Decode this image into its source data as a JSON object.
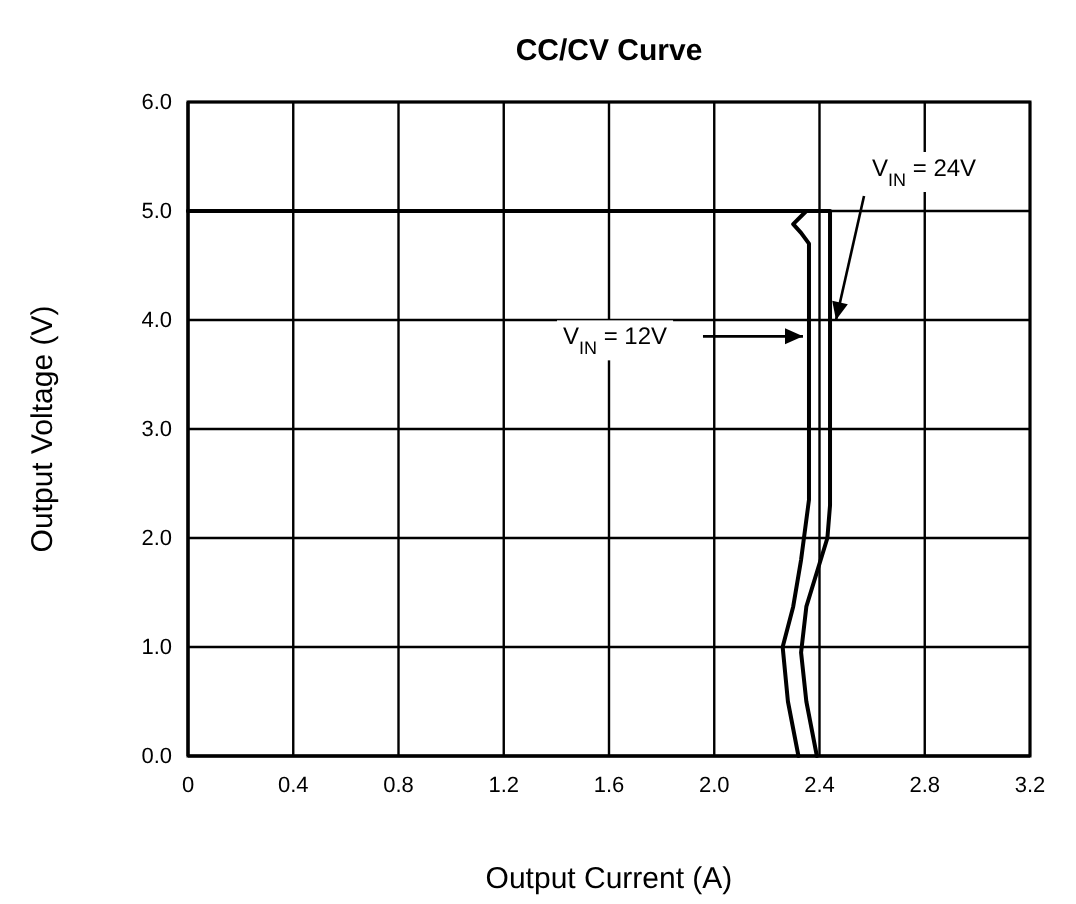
{
  "chart_data": {
    "type": "line",
    "title": "CC/CV Curve",
    "xlabel": "Output Current (A)",
    "ylabel": "Output Voltage (V)",
    "xlim": [
      0,
      3.2
    ],
    "ylim": [
      0,
      6
    ],
    "xticks": [
      0,
      0.4,
      0.8,
      1.2,
      1.6,
      {
        "value": 2,
        "label": "2.0"
      },
      2.4,
      2.8,
      3.2
    ],
    "yticks": [
      {
        "value": 0,
        "label": "0.0"
      },
      {
        "value": 1,
        "label": "1.0"
      },
      {
        "value": 2,
        "label": "2.0"
      },
      {
        "value": 3,
        "label": "3.0"
      },
      {
        "value": 4,
        "label": "4.0"
      },
      {
        "value": 5,
        "label": "5.0"
      },
      {
        "value": 6,
        "label": "6.0"
      }
    ],
    "grid": true,
    "line_style": "solid",
    "series": [
      {
        "name": "V$_{IN}$ = 12V",
        "color": "#000000",
        "x": [
          0,
          2.35,
          2.3,
          2.33,
          2.36,
          2.36,
          2.33,
          2.3,
          2.26,
          2.28,
          2.32
        ],
        "values": [
          5,
          5,
          4.88,
          4.8,
          4.7,
          2.35,
          1.8,
          1.37,
          1,
          0.5,
          0
        ]
      },
      {
        "name": "V$_{IN}$ = 24V",
        "color": "#000000",
        "x": [
          0,
          2.44,
          2.44,
          2.43,
          2.35,
          2.33,
          2.35,
          2.39
        ],
        "values": [
          5,
          5,
          2.3,
          2,
          1.37,
          0.95,
          0.5,
          0
        ]
      }
    ]
  }
}
